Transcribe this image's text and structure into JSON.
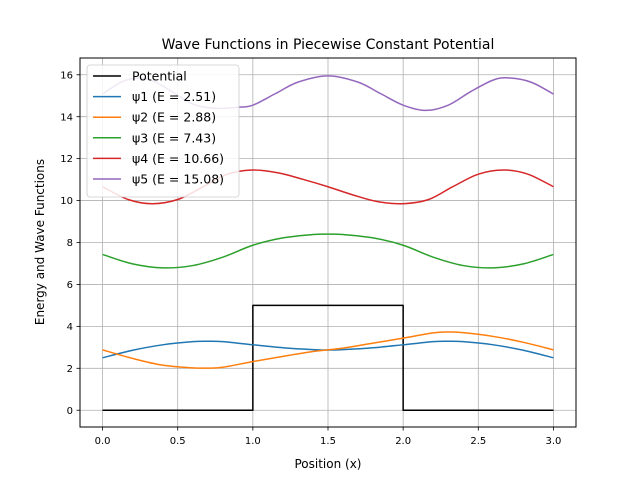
{
  "chart_data": {
    "type": "line",
    "title": "Wave Functions in Piecewise Constant Potential",
    "xlabel": "Position (x)",
    "ylabel": "Energy and Wave Functions",
    "xlim": [
      -0.15,
      3.15
    ],
    "ylim": [
      -0.8,
      16.8
    ],
    "xticks": [
      0.0,
      0.5,
      1.0,
      1.5,
      2.0,
      2.5,
      3.0
    ],
    "xtick_labels": [
      "0.0",
      "0.5",
      "1.0",
      "1.5",
      "2.0",
      "2.5",
      "3.0"
    ],
    "yticks": [
      0,
      2,
      4,
      6,
      8,
      10,
      12,
      14,
      16
    ],
    "ytick_labels": [
      "0",
      "2",
      "4",
      "6",
      "8",
      "10",
      "12",
      "14",
      "16"
    ],
    "grid": true,
    "legend_position": "top-left",
    "series": [
      {
        "name": "Potential",
        "color": "#000000",
        "x": [
          0,
          1.0,
          1.0,
          2.0,
          2.0,
          3.0
        ],
        "y": [
          0,
          0,
          5,
          5,
          0,
          0
        ]
      },
      {
        "name": "ψ1 (E = 2.51)",
        "color": "#1f77b4",
        "x": [
          0.0,
          0.2,
          0.4,
          0.6,
          0.7,
          0.8,
          1.0,
          1.2,
          1.4,
          1.5,
          1.6,
          1.8,
          2.0,
          2.2,
          2.3,
          2.4,
          2.6,
          2.8,
          3.0
        ],
        "y": [
          2.5,
          2.86,
          3.12,
          3.27,
          3.29,
          3.27,
          3.12,
          2.98,
          2.89,
          2.87,
          2.89,
          2.98,
          3.12,
          3.27,
          3.29,
          3.27,
          3.12,
          2.86,
          2.5
        ]
      },
      {
        "name": "ψ2 (E = 2.88)",
        "color": "#ff7f0e",
        "x": [
          0.0,
          0.2,
          0.4,
          0.6,
          0.7,
          0.8,
          1.0,
          1.2,
          1.4,
          1.5,
          1.6,
          1.8,
          2.0,
          2.2,
          2.3,
          2.4,
          2.6,
          2.8,
          3.0
        ],
        "y": [
          2.88,
          2.47,
          2.15,
          2.02,
          2.01,
          2.05,
          2.32,
          2.57,
          2.8,
          2.88,
          2.96,
          3.2,
          3.44,
          3.69,
          3.73,
          3.7,
          3.52,
          3.24,
          2.88
        ]
      },
      {
        "name": "ψ3 (E = 7.43)",
        "color": "#2ca02c",
        "x": [
          0.0,
          0.2,
          0.4,
          0.6,
          0.8,
          1.0,
          1.2,
          1.4,
          1.5,
          1.6,
          1.8,
          2.0,
          2.2,
          2.4,
          2.6,
          2.8,
          3.0
        ],
        "y": [
          7.43,
          6.98,
          6.79,
          6.9,
          7.3,
          7.87,
          8.22,
          8.38,
          8.4,
          8.38,
          8.22,
          7.87,
          7.3,
          6.9,
          6.79,
          6.98,
          7.43
        ]
      },
      {
        "name": "ψ4 (E = 10.66)",
        "color": "#d62728",
        "x": [
          0.0,
          0.17,
          0.33,
          0.5,
          0.67,
          0.83,
          1.0,
          1.17,
          1.33,
          1.5,
          1.67,
          1.83,
          2.0,
          2.17,
          2.33,
          2.5,
          2.67,
          2.83,
          3.0
        ],
        "y": [
          10.66,
          10.05,
          9.85,
          10.05,
          10.66,
          11.26,
          11.46,
          11.32,
          11.02,
          10.66,
          10.26,
          9.95,
          9.85,
          10.05,
          10.66,
          11.26,
          11.46,
          11.26,
          10.66
        ]
      },
      {
        "name": "ψ5 (E = 15.08)",
        "color": "#9467bd",
        "x": [
          0.0,
          0.15,
          0.3,
          0.45,
          0.6,
          0.75,
          0.9,
          1.0,
          1.15,
          1.3,
          1.5,
          1.7,
          1.85,
          2.0,
          2.15,
          2.3,
          2.45,
          2.6,
          2.7,
          2.85,
          3.0
        ],
        "y": [
          15.08,
          15.73,
          15.8,
          15.25,
          14.6,
          14.4,
          14.45,
          14.55,
          15.1,
          15.65,
          15.95,
          15.65,
          15.1,
          14.55,
          14.3,
          14.55,
          15.2,
          15.75,
          15.85,
          15.65,
          15.08
        ]
      }
    ]
  }
}
